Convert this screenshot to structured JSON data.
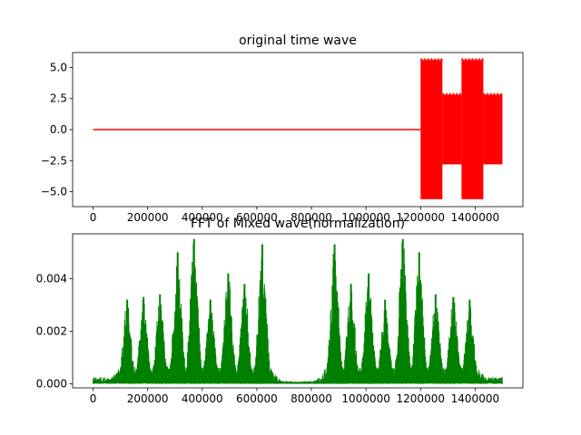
{
  "chart_data": [
    {
      "type": "line",
      "title": "original time wave",
      "color": "#ff0000",
      "xlim": [
        -75000,
        1575000
      ],
      "ylim": [
        -6.2,
        6.2
      ],
      "xticks": [
        0,
        200000,
        400000,
        600000,
        800000,
        1000000,
        1200000,
        1400000
      ],
      "xtick_labels": [
        "0",
        "200000",
        "400000",
        "600000",
        "800000",
        "1000000",
        "1200000",
        "1400000"
      ],
      "yticks": [
        -5.0,
        -2.5,
        0.0,
        2.5,
        5.0
      ],
      "ytick_labels": [
        "−5.0",
        "−2.5",
        "0.0",
        "2.5",
        "5.0"
      ],
      "envelope": [
        {
          "x0": 0,
          "x1": 1200000,
          "amp": 0.0
        },
        {
          "x0": 1200000,
          "x1": 1280000,
          "amp": 5.6
        },
        {
          "x0": 1280000,
          "x1": 1350000,
          "amp": 2.8
        },
        {
          "x0": 1350000,
          "x1": 1430000,
          "amp": 5.6
        },
        {
          "x0": 1430000,
          "x1": 1500000,
          "amp": 2.8
        }
      ]
    },
    {
      "type": "line",
      "title": "FFT of Mixed wave(normalization)",
      "color": "#008000",
      "xlim": [
        -75000,
        1575000
      ],
      "ylim": [
        -0.00015,
        0.0057
      ],
      "xticks": [
        0,
        200000,
        400000,
        600000,
        800000,
        1000000,
        1200000,
        1400000
      ],
      "xtick_labels": [
        "0",
        "200000",
        "400000",
        "600000",
        "800000",
        "1000000",
        "1200000",
        "1400000"
      ],
      "yticks": [
        0.0,
        0.002,
        0.004
      ],
      "ytick_labels": [
        "0.000",
        "0.002",
        "0.004"
      ],
      "peaks": [
        {
          "x": 125000,
          "y": 0.0032
        },
        {
          "x": 185000,
          "y": 0.0033
        },
        {
          "x": 245000,
          "y": 0.0034
        },
        {
          "x": 310000,
          "y": 0.005
        },
        {
          "x": 370000,
          "y": 0.0055
        },
        {
          "x": 430000,
          "y": 0.0032
        },
        {
          "x": 495000,
          "y": 0.0042
        },
        {
          "x": 555000,
          "y": 0.0038
        },
        {
          "x": 620000,
          "y": 0.0053
        },
        {
          "x": 885000,
          "y": 0.0053
        },
        {
          "x": 945000,
          "y": 0.0038
        },
        {
          "x": 1010000,
          "y": 0.0042
        },
        {
          "x": 1070000,
          "y": 0.0032
        },
        {
          "x": 1135000,
          "y": 0.0055
        },
        {
          "x": 1195000,
          "y": 0.005
        },
        {
          "x": 1255000,
          "y": 0.0034
        },
        {
          "x": 1320000,
          "y": 0.0033
        },
        {
          "x": 1380000,
          "y": 0.0032
        }
      ]
    }
  ]
}
